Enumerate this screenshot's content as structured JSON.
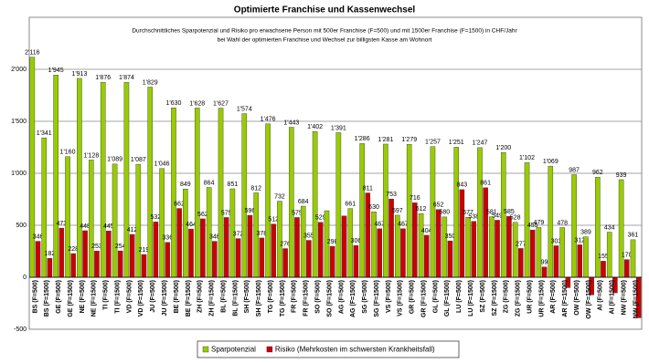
{
  "chart_data": {
    "type": "bar",
    "title": "Optimierte Franchise und Kassenwechsel",
    "subtitle": [
      "Durchschnittliches Sparpotenzial und Risiko pro erwachsene Person mit 500er Franchise (F=500) und mit 1500er Franchise (F=1500) in CHF/Jahr",
      "bei Wahl der optimierten Franchise und Wechsel zur billigsten Kasse am Wohnort"
    ],
    "categories": [
      "BS (F=500)",
      "BS (F=1500)",
      "GE (F=500)",
      "GE (F=1500)",
      "NE (F=500)",
      "NE (F=1500)",
      "TI (F=500)",
      "TI (F=1500)",
      "VD (F=500)",
      "VD (F=1500)",
      "JU (F=500)",
      "JU (F=1500)",
      "BE (F=500)",
      "BE (F=1500)",
      "ZH (F=500)",
      "ZH (F=1500)",
      "BL (F=500)",
      "BL (F=1500)",
      "SH (F=500)",
      "SH (F=1500)",
      "TG (F=500)",
      "TG (F=1500)",
      "FR (F=500)",
      "FR (F=1500)",
      "SO (F=500)",
      "SO (F=1500)",
      "AG (F=500)",
      "AG (F=1500)",
      "SG (F=500)",
      "SG (F=1500)",
      "VS (F=500)",
      "VS (F=1500)",
      "GR (F=500)",
      "GR (F=1500)",
      "GL (F=500)",
      "GL (F=1500)",
      "LU (F=500)",
      "LU (F=1500)",
      "SZ (F=500)",
      "SZ (F=1500)",
      "ZG (F=500)",
      "ZG (F=1500)",
      "UR (F=500)",
      "UR (F=1500)",
      "AR (F=500)",
      "AR (F=1500)",
      "OW (F=500)",
      "OW (F=1500)",
      "AI (F=500)",
      "AI (F=1500)",
      "NW (F=500)",
      "NW (F=1500)"
    ],
    "series": [
      {
        "name": "Sparpotenzial",
        "color": "#99cc00",
        "values": [
          2116,
          1341,
          1945,
          1160,
          1913,
          1128,
          1876,
          1089,
          1874,
          1087,
          1829,
          1046,
          1630,
          849,
          1628,
          864,
          1627,
          851,
          1574,
          812,
          1476,
          732,
          1443,
          684,
          1402,
          640,
          1391,
          661,
          1286,
          630,
          1281,
          597,
          1279,
          612,
          1257,
          580,
          1251,
          577,
          1247,
          581,
          1200,
          528,
          1102,
          479,
          1069,
          478,
          987,
          389,
          962,
          434,
          939,
          361
        ],
        "value_labels": [
          "2'116",
          "1'341",
          "1'945",
          "1'160",
          "1'913",
          "1'128",
          "1'876",
          "1'089",
          "1'874",
          "1'087",
          "1'829",
          "1'046",
          "1'630",
          "849",
          "1'628",
          "864",
          "1'627",
          "851",
          "1'574",
          "812",
          "1'476",
          "732",
          "1'443",
          "684",
          "1'402",
          null,
          "1'391",
          "661",
          "1'286",
          "630",
          "1'281",
          "597",
          "1'279",
          "612",
          "1'257",
          "580",
          "1'251",
          "577",
          "1'247",
          "581",
          "1'200",
          "528",
          "1'102",
          "479",
          "1'069",
          "478",
          "987",
          "389",
          "962",
          "434",
          "939",
          "361"
        ]
      },
      {
        "name": "Risiko (Mehrkosten im schwersten Krankheitsfall)",
        "color": "#cc0000",
        "values": [
          346,
          182,
          473,
          228,
          448,
          253,
          445,
          254,
          412,
          219,
          532,
          336,
          662,
          464,
          562,
          346,
          575,
          372,
          596,
          378,
          512,
          276,
          575,
          355,
          529,
          298,
          590,
          306,
          811,
          467,
          753,
          467,
          716,
          404,
          652,
          350,
          843,
          538,
          861,
          549,
          585,
          277,
          455,
          99,
          303,
          -100,
          312,
          -170,
          155,
          -150,
          170,
          -390
        ],
        "value_labels": [
          "346",
          "182",
          "473",
          "228",
          "448",
          "253",
          "445",
          "254",
          "412",
          "219",
          "532",
          "336",
          "662",
          "464",
          "562",
          "346",
          "575",
          "372",
          "596",
          "378",
          "512",
          "276",
          "575",
          "355",
          "529",
          "298",
          null,
          "306",
          "811",
          "467",
          "753",
          "467",
          "716",
          "404",
          "652",
          "350",
          "843",
          "538",
          "861",
          "549",
          "585",
          "277",
          "455",
          "99",
          "303",
          null,
          "312",
          null,
          "155",
          null,
          "170",
          null
        ]
      }
    ],
    "ylim": [
      -500,
      2500
    ],
    "yticks": [
      {
        "value": -500,
        "label": "-500"
      },
      0,
      500,
      {
        "value": 1000,
        "label": "1'000"
      },
      {
        "value": 1500,
        "label": "1'500"
      },
      {
        "value": 2000,
        "label": "2'000"
      }
    ],
    "grid": true,
    "legend": "bottom"
  }
}
